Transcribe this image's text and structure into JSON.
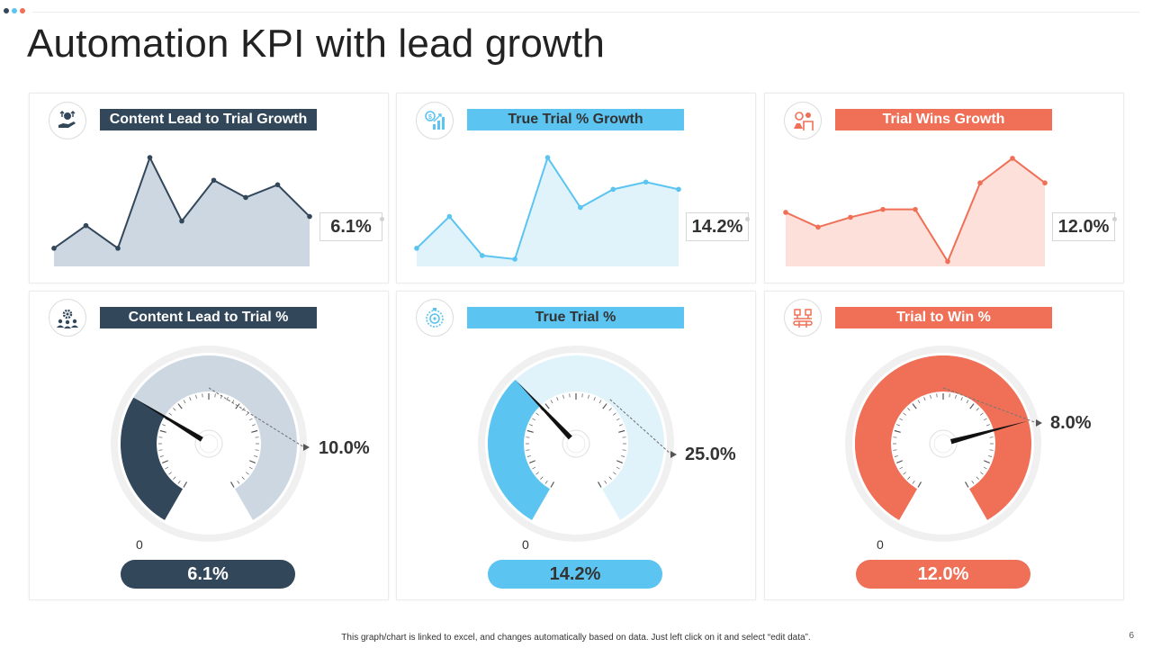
{
  "slide": {
    "title": "Automation KPI with lead growth",
    "footer_note": "This graph/chart is linked to excel, and changes automatically based on data. Just left click on it and select “edit data”.",
    "page_number": "6",
    "dot_colors": [
      "#33475b",
      "#5bc4f1",
      "#f07057"
    ]
  },
  "colors": {
    "navy": "#33475b",
    "blue": "#5bc4f1",
    "coral": "#f07057"
  },
  "panels": {
    "p1": {
      "label": "Content Lead to Trial Growth",
      "value": "6.1%",
      "icon": "money-hand-icon"
    },
    "p2": {
      "label": "True Trial % Growth",
      "value": "14.2%",
      "icon": "growth-chart-icon"
    },
    "p3": {
      "label": "Trial Wins Growth",
      "value": "12.0%",
      "icon": "strategy-person-icon"
    },
    "p4": {
      "label": "Content Lead to Trial %",
      "target": "10.0%",
      "zero": "0",
      "value": "6.1%",
      "icon": "team-gear-icon"
    },
    "p5": {
      "label": "True Trial %",
      "target": "25.0%",
      "zero": "0",
      "value": "14.2%",
      "icon": "target-dial-icon"
    },
    "p6": {
      "label": "Trial to Win %",
      "target": "8.0%",
      "zero": "0",
      "value": "12.0%",
      "icon": "conveyor-icon"
    }
  },
  "chart_data": [
    {
      "type": "area",
      "title": "Content Lead to Trial Growth",
      "color": "#33475b",
      "fill": "#cdd7e2",
      "x": [
        1,
        2,
        3,
        4,
        5,
        6,
        7,
        8,
        9
      ],
      "values": [
        2.0,
        4.5,
        2.0,
        12.0,
        5.0,
        9.5,
        7.6,
        9.0,
        5.5
      ],
      "ylim": [
        0,
        13
      ]
    },
    {
      "type": "area",
      "title": "True Trial % Growth",
      "color": "#5bc4f1",
      "fill": "#e0f3fb",
      "x": [
        1,
        2,
        3,
        4,
        5,
        6,
        7,
        8,
        9
      ],
      "values": [
        1.5,
        5.0,
        0.7,
        0.3,
        11.5,
        6.0,
        8.0,
        8.8,
        8.0
      ],
      "ylim": [
        -0.5,
        12.5
      ]
    },
    {
      "type": "area",
      "title": "Trial Wins Growth",
      "color": "#f07057",
      "fill": "#fde0da",
      "x": [
        1,
        2,
        3,
        4,
        5,
        6,
        7,
        8,
        9
      ],
      "values": [
        5.0,
        3.5,
        4.5,
        5.3,
        5.3,
        0.0,
        8.0,
        10.5,
        8.0
      ],
      "ylim": [
        -0.5,
        11.5
      ]
    },
    {
      "type": "gauge",
      "title": "Content Lead to Trial %",
      "value": 6.1,
      "target": 10.0,
      "max": 20.0,
      "color": "#33475b",
      "track": "#cdd7e2"
    },
    {
      "type": "gauge",
      "title": "True Trial %",
      "value": 14.2,
      "target": 25.0,
      "max": 40.0,
      "color": "#5bc4f1",
      "track": "#e0f3fb"
    },
    {
      "type": "gauge",
      "title": "Trial to Win %",
      "value": 12.0,
      "target": 8.0,
      "max": 16.0,
      "color": "#f07057",
      "track": "#f07057"
    }
  ]
}
